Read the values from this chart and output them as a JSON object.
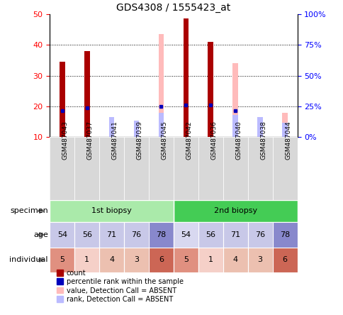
{
  "title": "GDS4308 / 1555423_at",
  "samples": [
    "GSM487043",
    "GSM487037",
    "GSM487041",
    "GSM487039",
    "GSM487045",
    "GSM487042",
    "GSM487036",
    "GSM487040",
    "GSM487038",
    "GSM487044"
  ],
  "count_values": [
    34.5,
    38.0,
    null,
    null,
    null,
    48.5,
    41.0,
    null,
    null,
    null
  ],
  "percentile_values": [
    18.5,
    19.5,
    null,
    null,
    20.0,
    20.5,
    20.5,
    18.5,
    null,
    null
  ],
  "absent_value": [
    null,
    null,
    null,
    null,
    43.5,
    null,
    null,
    34.0,
    null,
    18.0
  ],
  "absent_rank": [
    17.5,
    null,
    16.0,
    13.5,
    20.0,
    null,
    null,
    18.0,
    16.0,
    11.5
  ],
  "ylim_left": [
    10,
    50
  ],
  "ylim_right": [
    0,
    100
  ],
  "yticks_left": [
    10,
    20,
    30,
    40,
    50
  ],
  "yticks_right": [
    0,
    25,
    50,
    75,
    100
  ],
  "age": [
    54,
    56,
    71,
    76,
    78,
    54,
    56,
    71,
    76,
    78
  ],
  "individual": [
    5,
    1,
    4,
    3,
    6,
    5,
    1,
    4,
    3,
    6
  ],
  "specimen_groups": [
    {
      "label": "1st biopsy",
      "start": 0,
      "end": 5,
      "color": "#aaeaaa"
    },
    {
      "label": "2nd biopsy",
      "start": 5,
      "end": 10,
      "color": "#44cc55"
    }
  ],
  "age_colors": [
    "#c8c8e8",
    "#c8c8e8",
    "#c8c8e8",
    "#c8c8e8",
    "#8888cc",
    "#d8d8f0",
    "#c8c8e8",
    "#c8c8e8",
    "#c8c8e8",
    "#8888cc"
  ],
  "individual_colors": [
    "#e09080",
    "#f5d0c8",
    "#ecc0b0",
    "#ecc0b0",
    "#cc6655",
    "#e09080",
    "#f5d0c8",
    "#ecc0b0",
    "#ecc0b0",
    "#cc6655"
  ],
  "bar_width": 0.25,
  "count_color": "#aa0000",
  "percentile_color": "#0000bb",
  "absent_value_color": "#ffbbbb",
  "absent_rank_color": "#bbbbff",
  "legend_items": [
    {
      "label": "count",
      "color": "#aa0000"
    },
    {
      "label": "percentile rank within the sample",
      "color": "#0000bb"
    },
    {
      "label": "value, Detection Call = ABSENT",
      "color": "#ffbbbb"
    },
    {
      "label": "rank, Detection Call = ABSENT",
      "color": "#bbbbff"
    }
  ]
}
